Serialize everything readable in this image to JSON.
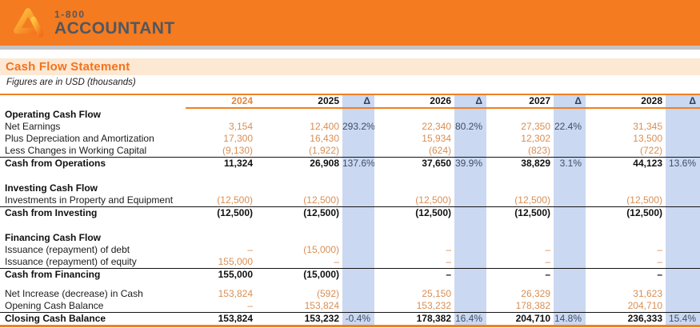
{
  "header": {
    "brand_line1": "1-800",
    "brand_line2": "ACCOUNTANT",
    "logo_icon": "a-triangle-logo"
  },
  "title": "Cash Flow Statement",
  "subtitle": "Figures are in USD (thousands)",
  "table": {
    "columns": [
      "",
      "2024",
      "2025",
      "Δ",
      "2026",
      "Δ",
      "2027",
      "Δ",
      "2028",
      "Δ"
    ],
    "rows": [
      {
        "type": "section",
        "label": "Operating Cash Flow"
      },
      {
        "type": "data",
        "label": "Net Earnings",
        "values": [
          "3,154",
          "12,400",
          "293.2%",
          "22,340",
          "80.2%",
          "27,350",
          "22.4%",
          "31,345",
          ""
        ]
      },
      {
        "type": "data",
        "label": "Plus Depreciation and Amortization",
        "values": [
          "17,300",
          "16,430",
          "",
          "15,934",
          "",
          "12,302",
          "",
          "13,500",
          ""
        ]
      },
      {
        "type": "data",
        "label": "Less Changes in Working Capital",
        "values": [
          "(9,130)",
          "(1,922)",
          "",
          "(624)",
          "",
          "(823)",
          "",
          "(722)",
          ""
        ]
      },
      {
        "type": "total",
        "label": "Cash from Operations",
        "values": [
          "11,324",
          "26,908",
          "137.6%",
          "37,650",
          "39.9%",
          "38,829",
          "3.1%",
          "44,123",
          "13.6%"
        ]
      },
      {
        "type": "spacer"
      },
      {
        "type": "section",
        "label": "Investing Cash Flow"
      },
      {
        "type": "data",
        "label": "Investments in Property and Equipment",
        "values": [
          "(12,500)",
          "(12,500)",
          "",
          "(12,500)",
          "",
          "(12,500)",
          "",
          "(12,500)",
          ""
        ]
      },
      {
        "type": "total",
        "label": "Cash from Investing",
        "values": [
          "(12,500)",
          "(12,500)",
          "",
          "(12,500)",
          "",
          "(12,500)",
          "",
          "(12,500)",
          ""
        ]
      },
      {
        "type": "spacer"
      },
      {
        "type": "section",
        "label": "Financing Cash Flow"
      },
      {
        "type": "data",
        "label": "Issuance (repayment) of debt",
        "values": [
          "–",
          "(15,000)",
          "",
          "–",
          "",
          "–",
          "",
          "–",
          ""
        ]
      },
      {
        "type": "data",
        "label": "Issuance (repayment) of equity",
        "values": [
          "155,000",
          "–",
          "",
          "–",
          "",
          "–",
          "",
          "–",
          ""
        ]
      },
      {
        "type": "total",
        "label": "Cash from Financing",
        "values": [
          "155,000",
          "(15,000)",
          "",
          "–",
          "",
          "–",
          "",
          "–",
          ""
        ]
      },
      {
        "type": "spacer_small"
      },
      {
        "type": "data",
        "label": "Net Increase (decrease) in Cash",
        "values": [
          "153,824",
          "(592)",
          "",
          "25,150",
          "",
          "26,329",
          "",
          "31,623",
          ""
        ]
      },
      {
        "type": "data",
        "label": "Opening Cash Balance",
        "values": [
          "–",
          "153,824",
          "",
          "153,232",
          "",
          "178,382",
          "",
          "204,710",
          ""
        ]
      },
      {
        "type": "total",
        "label": "Closing Cash Balance",
        "values": [
          "153,824",
          "153,232",
          "-0.4%",
          "178,382",
          "16.4%",
          "204,710",
          "14.8%",
          "236,333",
          "15.4%"
        ]
      }
    ]
  },
  "colors": {
    "banner_orange": "#F47B20",
    "title_orange": "#F4731D",
    "title_band_peach": "#FCE8D3",
    "number_orange": "#D98E53",
    "delta_text_navy": "#3F4E69",
    "delta_column_blue": "#CBD8F1",
    "brand_text_gray": "#515760",
    "divider_gray": "#C3C3C4",
    "table_rule_orange": "#F08023",
    "logo_gradient_start": "#FFC63F",
    "logo_gradient_end": "#F2701D"
  }
}
